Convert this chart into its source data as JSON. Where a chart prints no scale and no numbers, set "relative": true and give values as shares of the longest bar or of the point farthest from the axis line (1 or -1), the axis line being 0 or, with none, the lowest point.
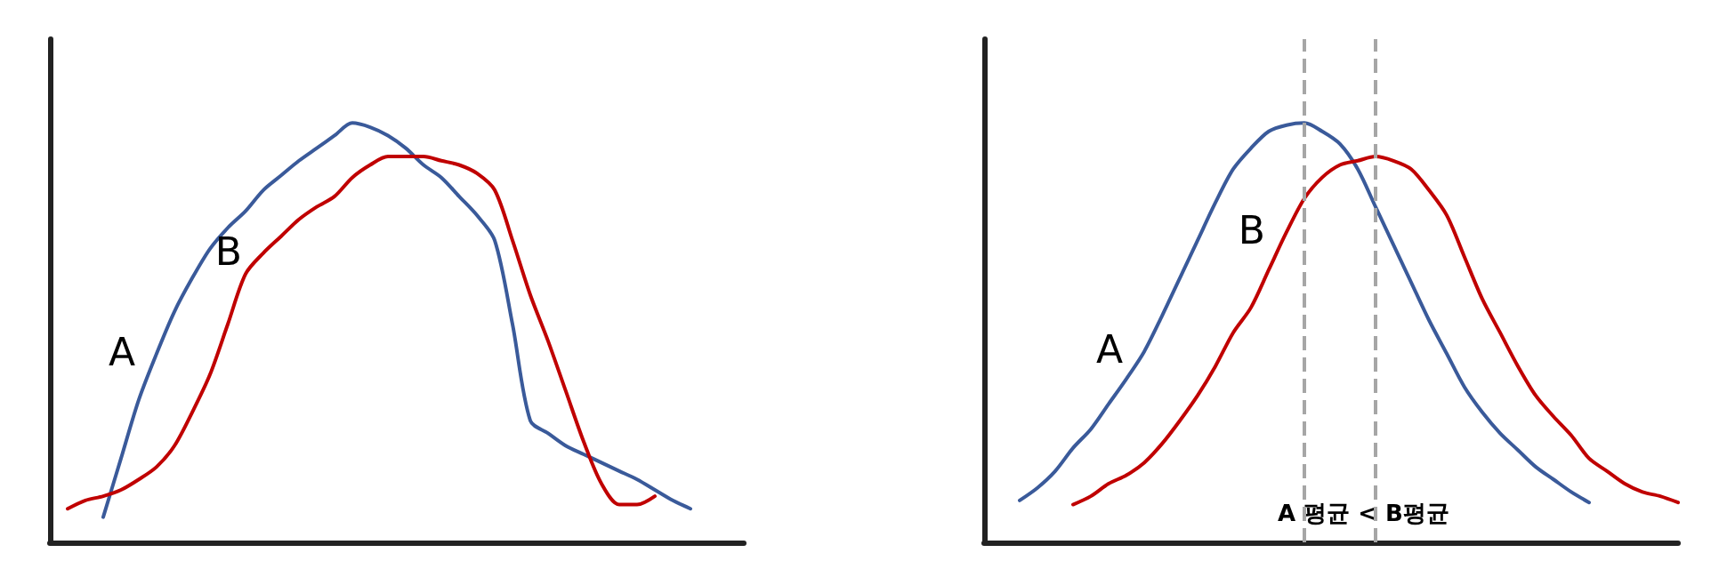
{
  "chart_data": [
    {
      "type": "line",
      "relative": true,
      "legend": false,
      "grid": false,
      "marker": "none",
      "line_style": "solid",
      "tick_labels": false,
      "categories": [
        null,
        null,
        null,
        null,
        null,
        null,
        null,
        null,
        null,
        null,
        null,
        null,
        null,
        null,
        null,
        null,
        null,
        null,
        null,
        null,
        null,
        null,
        null,
        null,
        null,
        null,
        null,
        null,
        null,
        null,
        null,
        null,
        null,
        null,
        null,
        null,
        null,
        null,
        null,
        null
      ],
      "series": [
        {
          "name": "A",
          "color": "#3a5a9a",
          "values": [
            null,
            null,
            null,
            0.06,
            0.2,
            0.34,
            0.45,
            0.55,
            0.63,
            0.7,
            0.75,
            0.79,
            0.84,
            0.875,
            0.91,
            0.94,
            0.97,
            1.0,
            0.99,
            0.97,
            0.94,
            0.9,
            0.87,
            0.825,
            0.78,
            0.72,
            0.52,
            0.29,
            0.26,
            0.23,
            0.21,
            0.19,
            0.17,
            0.15,
            0.125,
            0.1,
            0.08,
            null,
            null,
            null
          ]
        },
        {
          "name": "B",
          "color": "#c00000",
          "values": [
            null,
            0.08,
            0.1,
            0.11,
            0.125,
            0.15,
            0.18,
            0.23,
            0.31,
            0.4,
            0.52,
            0.64,
            0.69,
            0.73,
            0.77,
            0.8,
            0.825,
            0.87,
            0.9,
            0.92,
            0.92,
            0.92,
            0.91,
            0.9,
            0.88,
            0.84,
            0.72,
            0.59,
            0.48,
            0.36,
            0.24,
            0.14,
            0.09,
            0.09,
            0.11,
            null,
            null,
            null,
            null,
            null
          ]
        }
      ]
    },
    {
      "type": "line",
      "relative": true,
      "legend": false,
      "grid": false,
      "marker": "none",
      "line_style": "solid",
      "tick_labels": false,
      "categories": [
        null,
        null,
        null,
        null,
        null,
        null,
        null,
        null,
        null,
        null,
        null,
        null,
        null,
        null,
        null,
        null,
        null,
        null,
        null,
        null,
        null,
        null,
        null,
        null,
        null,
        null,
        null,
        null,
        null,
        null,
        null,
        null,
        null,
        null,
        null,
        null,
        null,
        null,
        null,
        null
      ],
      "series": [
        {
          "name": "A",
          "color": "#3a5a9a",
          "values": [
            null,
            null,
            0.1,
            0.13,
            0.17,
            0.225,
            0.27,
            0.33,
            0.39,
            0.455,
            0.54,
            0.63,
            0.72,
            0.81,
            0.89,
            0.94,
            0.98,
            0.995,
            1.0,
            0.98,
            0.95,
            0.89,
            0.8,
            0.71,
            0.62,
            0.53,
            0.45,
            0.37,
            0.31,
            0.26,
            0.22,
            0.18,
            0.15,
            0.12,
            0.095,
            null,
            null,
            null,
            null,
            null
          ]
        },
        {
          "name": "B",
          "color": "#c00000",
          "values": [
            null,
            null,
            null,
            null,
            null,
            0.09,
            0.11,
            0.14,
            0.16,
            0.19,
            0.235,
            0.29,
            0.35,
            0.42,
            0.5,
            0.56,
            0.65,
            0.74,
            0.82,
            0.87,
            0.9,
            0.91,
            0.92,
            0.91,
            0.89,
            0.84,
            0.78,
            0.68,
            0.58,
            0.5,
            0.42,
            0.35,
            0.3,
            0.255,
            0.2,
            0.17,
            0.14,
            0.12,
            0.11,
            0.095
          ]
        }
      ],
      "annotations": [
        "A 평균 < B평균"
      ]
    }
  ]
}
